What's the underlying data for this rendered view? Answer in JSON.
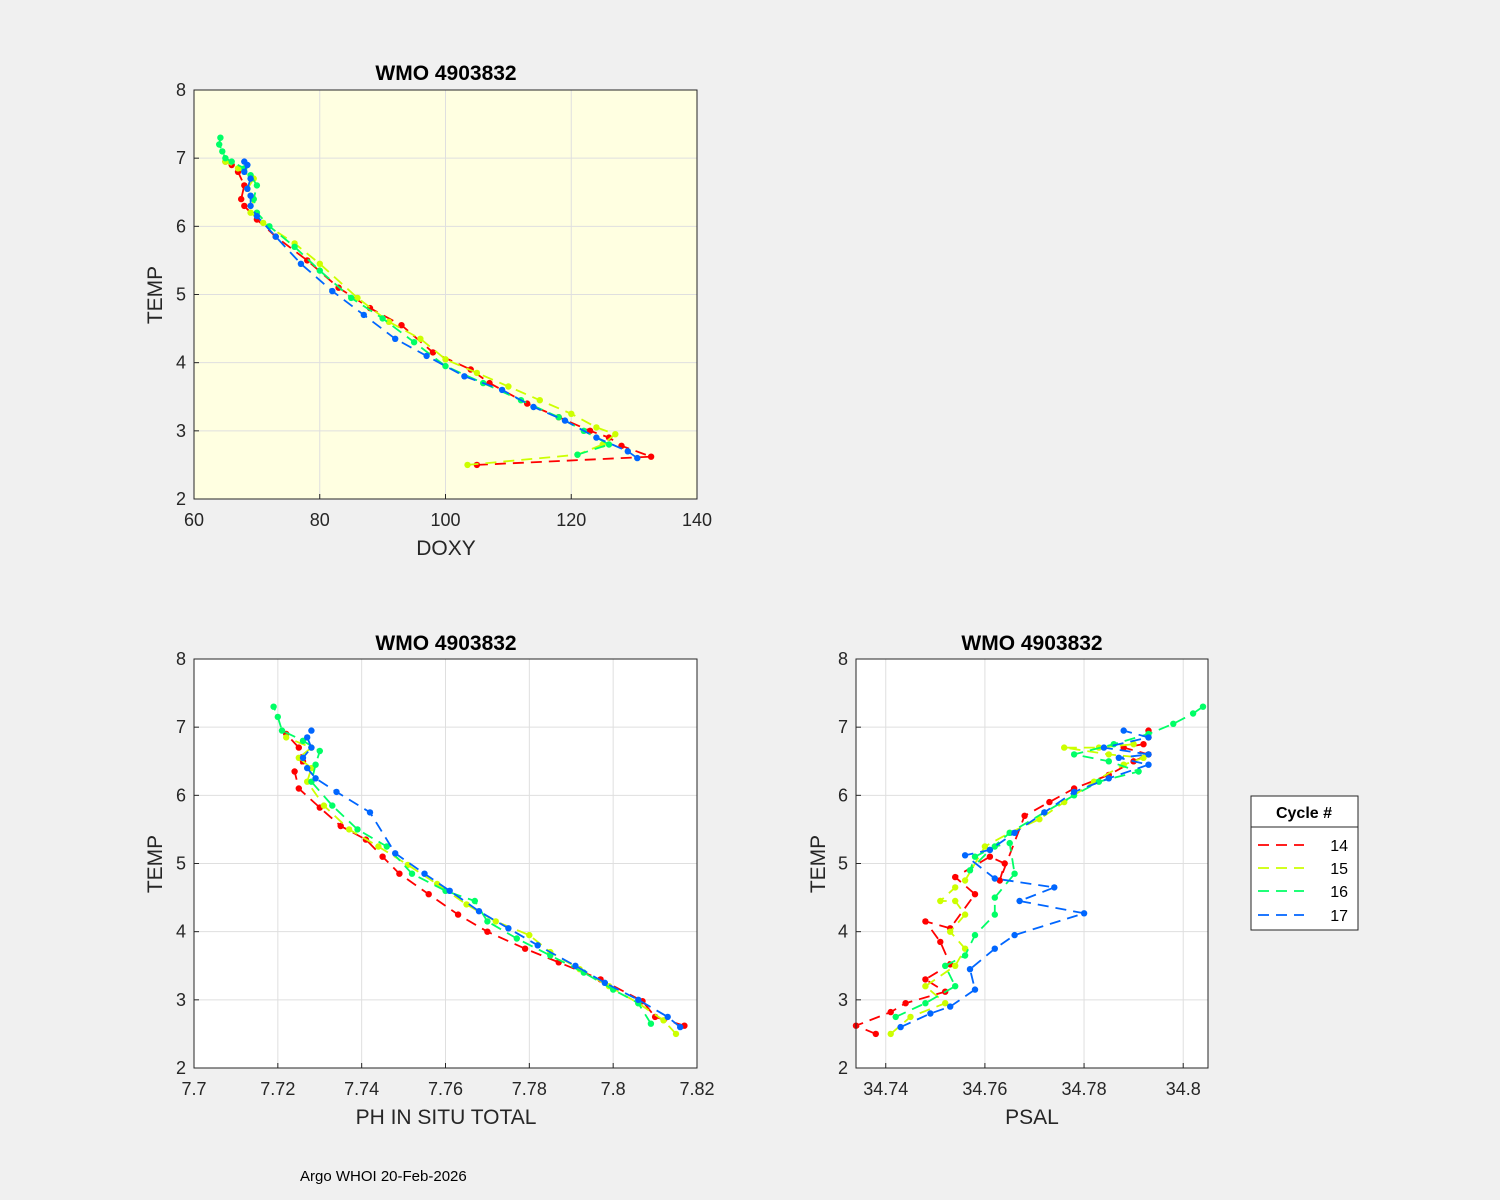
{
  "colors": {
    "figure_bg": "#f0f0f0",
    "axes_bg_doxy": "#ffffe1",
    "axes_bg": "#ffffff",
    "grid": "#dfdfdf"
  },
  "footer": "Argo WHOI 20-Feb-2026",
  "legend": {
    "title": "Cycle #",
    "entries": [
      {
        "label": "14",
        "color": "#ff0000"
      },
      {
        "label": "15",
        "color": "#ccff00"
      },
      {
        "label": "16",
        "color": "#00ff66"
      },
      {
        "label": "17",
        "color": "#0066ff"
      }
    ]
  },
  "chart_data": [
    {
      "type": "line",
      "title": "WMO 4903832",
      "xlabel": "DOXY",
      "ylabel": "TEMP",
      "xlim": [
        60,
        140
      ],
      "ylim": [
        2,
        8
      ],
      "xticks": [
        "60",
        "80",
        "100",
        "120",
        "140"
      ],
      "yticks": [
        "2",
        "3",
        "4",
        "5",
        "6",
        "7",
        "8"
      ],
      "grid": true,
      "series": [
        {
          "name": "14",
          "color": "#ff0000",
          "x": [
            105,
            132.7,
            128,
            126,
            123,
            118,
            113,
            107,
            104,
            98,
            93,
            88,
            83,
            78,
            73,
            70,
            68,
            67.5,
            68,
            67,
            66,
            65
          ],
          "y": [
            2.5,
            2.62,
            2.78,
            2.9,
            3.0,
            3.2,
            3.4,
            3.7,
            3.9,
            4.15,
            4.55,
            4.8,
            5.1,
            5.5,
            5.85,
            6.1,
            6.3,
            6.4,
            6.6,
            6.8,
            6.9,
            6.95
          ]
        },
        {
          "name": "15",
          "color": "#ccff00",
          "x": [
            103.5,
            121,
            125,
            127,
            124,
            120,
            115,
            110,
            105,
            100,
            96,
            91,
            86,
            80,
            76,
            71,
            69,
            69.5,
            68.5,
            69.5,
            67,
            65
          ],
          "y": [
            2.5,
            2.65,
            2.8,
            2.95,
            3.05,
            3.25,
            3.45,
            3.65,
            3.85,
            4.05,
            4.35,
            4.6,
            4.95,
            5.45,
            5.75,
            6.05,
            6.2,
            6.4,
            6.55,
            6.7,
            6.85,
            6.95
          ]
        },
        {
          "name": "16",
          "color": "#00ff66",
          "x": [
            121,
            126,
            122,
            118,
            112,
            106,
            100,
            95,
            90,
            85,
            80,
            76,
            72,
            70,
            69.5,
            70,
            69,
            68,
            66,
            65,
            64.5,
            64,
            64.2
          ],
          "y": [
            2.65,
            2.8,
            3.0,
            3.2,
            3.45,
            3.7,
            3.95,
            4.3,
            4.65,
            4.95,
            5.35,
            5.7,
            6.0,
            6.2,
            6.4,
            6.6,
            6.75,
            6.85,
            6.95,
            7.0,
            7.1,
            7.2,
            7.3
          ]
        },
        {
          "name": "17",
          "color": "#0066ff",
          "x": [
            130.5,
            129,
            124,
            119,
            114,
            109,
            103,
            97,
            92,
            87,
            82,
            77,
            73,
            70,
            69,
            69,
            68.5,
            69,
            68,
            68.5,
            68
          ],
          "y": [
            2.6,
            2.7,
            2.9,
            3.15,
            3.35,
            3.6,
            3.8,
            4.1,
            4.35,
            4.7,
            5.05,
            5.45,
            5.85,
            6.15,
            6.3,
            6.45,
            6.55,
            6.7,
            6.8,
            6.9,
            6.95
          ]
        }
      ]
    },
    {
      "type": "line",
      "title": "WMO 4903832",
      "xlabel": "PH IN SITU TOTAL",
      "ylabel": "TEMP",
      "xlim": [
        7.7,
        7.82
      ],
      "ylim": [
        2,
        8
      ],
      "xticks": [
        "7.7",
        "7.72",
        "7.74",
        "7.76",
        "7.78",
        "7.8",
        "7.82"
      ],
      "yticks": [
        "2",
        "3",
        "4",
        "5",
        "6",
        "7",
        "8"
      ],
      "grid": true,
      "series": [
        {
          "name": "14",
          "color": "#ff0000",
          "x": [
            7.817,
            7.81,
            7.807,
            7.797,
            7.787,
            7.779,
            7.77,
            7.763,
            7.756,
            7.749,
            7.745,
            7.741,
            7.735,
            7.73,
            7.725,
            7.724,
            7.726,
            7.725,
            7.722
          ],
          "y": [
            2.62,
            2.75,
            2.98,
            3.3,
            3.55,
            3.75,
            4.0,
            4.25,
            4.55,
            4.85,
            5.1,
            5.35,
            5.55,
            5.82,
            6.1,
            6.35,
            6.5,
            6.7,
            6.9
          ]
        },
        {
          "name": "15",
          "color": "#ccff00",
          "x": [
            7.815,
            7.812,
            7.806,
            7.799,
            7.792,
            7.785,
            7.78,
            7.772,
            7.765,
            7.758,
            7.751,
            7.744,
            7.737,
            7.731,
            7.727,
            7.728,
            7.725,
            7.728,
            7.722
          ],
          "y": [
            2.5,
            2.7,
            2.95,
            3.2,
            3.45,
            3.7,
            3.95,
            4.15,
            4.4,
            4.7,
            4.98,
            5.25,
            5.5,
            5.85,
            6.2,
            6.4,
            6.55,
            6.7,
            6.85
          ]
        },
        {
          "name": "16",
          "color": "#00ff66",
          "x": [
            7.809,
            7.806,
            7.8,
            7.793,
            7.785,
            7.777,
            7.77,
            7.767,
            7.76,
            7.752,
            7.746,
            7.739,
            7.733,
            7.728,
            7.729,
            7.73,
            7.726,
            7.721,
            7.72,
            7.719
          ],
          "y": [
            2.65,
            2.95,
            3.15,
            3.4,
            3.65,
            3.9,
            4.15,
            4.45,
            4.6,
            4.85,
            5.25,
            5.5,
            5.85,
            6.2,
            6.45,
            6.65,
            6.8,
            6.95,
            7.15,
            7.3
          ]
        },
        {
          "name": "17",
          "color": "#0066ff",
          "x": [
            7.816,
            7.813,
            7.806,
            7.798,
            7.791,
            7.782,
            7.775,
            7.768,
            7.761,
            7.755,
            7.748,
            7.742,
            7.734,
            7.729,
            7.727,
            7.726,
            7.728,
            7.727,
            7.728
          ],
          "y": [
            2.6,
            2.75,
            3.0,
            3.25,
            3.5,
            3.8,
            4.05,
            4.3,
            4.6,
            4.85,
            5.15,
            5.75,
            6.05,
            6.25,
            6.4,
            6.55,
            6.7,
            6.85,
            6.95
          ]
        }
      ]
    },
    {
      "type": "line",
      "title": "WMO 4903832",
      "xlabel": "PSAL",
      "ylabel": "TEMP",
      "xlim": [
        34.734,
        34.805
      ],
      "ylim": [
        2,
        8
      ],
      "xticks": [
        "34.74",
        "34.76",
        "34.78",
        "34.8"
      ],
      "xtick_values": [
        34.74,
        34.76,
        34.78,
        34.8
      ],
      "yticks": [
        "2",
        "3",
        "4",
        "5",
        "6",
        "7",
        "8"
      ],
      "grid": true,
      "series": [
        {
          "name": "14",
          "color": "#ff0000",
          "x": [
            34.738,
            34.734,
            34.741,
            34.744,
            34.752,
            34.748,
            34.753,
            34.751,
            34.748,
            34.753,
            34.758,
            34.754,
            34.761,
            34.764,
            34.763,
            34.768,
            34.773,
            34.778,
            34.785,
            34.79,
            34.793,
            34.788,
            34.792,
            34.793,
            34.793
          ],
          "y": [
            2.5,
            2.62,
            2.82,
            2.95,
            3.12,
            3.3,
            3.52,
            3.85,
            4.15,
            4.05,
            4.55,
            4.8,
            5.1,
            5.0,
            4.75,
            5.7,
            5.9,
            6.1,
            6.3,
            6.5,
            6.6,
            6.7,
            6.75,
            6.85,
            6.95
          ]
        },
        {
          "name": "15",
          "color": "#ccff00",
          "x": [
            34.741,
            34.745,
            34.752,
            34.748,
            34.754,
            34.756,
            34.753,
            34.756,
            34.754,
            34.751,
            34.754,
            34.756,
            34.76,
            34.765,
            34.771,
            34.776,
            34.782,
            34.788,
            34.792,
            34.785,
            34.776,
            34.783,
            34.79
          ],
          "y": [
            2.5,
            2.75,
            2.95,
            3.2,
            3.5,
            3.75,
            4.0,
            4.25,
            4.45,
            4.45,
            4.65,
            4.75,
            5.25,
            5.45,
            5.65,
            5.9,
            6.2,
            6.45,
            6.55,
            6.6,
            6.7,
            6.7,
            6.75
          ]
        },
        {
          "name": "16",
          "color": "#00ff66",
          "x": [
            34.742,
            34.748,
            34.754,
            34.752,
            34.756,
            34.758,
            34.762,
            34.762,
            34.766,
            34.765,
            34.762,
            34.758,
            34.757,
            34.761,
            34.765,
            34.772,
            34.778,
            34.783,
            34.791,
            34.785,
            34.778,
            34.786,
            34.793,
            34.798,
            34.802,
            34.804
          ],
          "y": [
            2.75,
            2.95,
            3.2,
            3.5,
            3.65,
            3.95,
            4.25,
            4.5,
            4.85,
            5.3,
            5.25,
            5.1,
            4.9,
            5.2,
            5.45,
            5.75,
            6.0,
            6.2,
            6.35,
            6.5,
            6.6,
            6.75,
            6.9,
            7.05,
            7.2,
            7.3
          ]
        },
        {
          "name": "17",
          "color": "#0066ff",
          "x": [
            34.743,
            34.749,
            34.753,
            34.758,
            34.757,
            34.762,
            34.766,
            34.78,
            34.767,
            34.774,
            34.762,
            34.756,
            34.761,
            34.766,
            34.772,
            34.778,
            34.785,
            34.793,
            34.787,
            34.793,
            34.784,
            34.793,
            34.788
          ],
          "y": [
            2.6,
            2.8,
            2.9,
            3.15,
            3.45,
            3.75,
            3.95,
            4.27,
            4.45,
            4.65,
            4.78,
            5.12,
            5.2,
            5.45,
            5.75,
            6.05,
            6.25,
            6.45,
            6.55,
            6.6,
            6.7,
            6.85,
            6.95
          ]
        }
      ]
    }
  ]
}
